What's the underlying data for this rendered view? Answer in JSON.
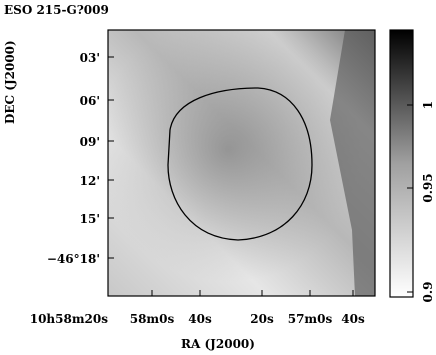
{
  "title": "ESO 215-G?009",
  "x_axis": {
    "label": "RA (J2000)",
    "ticks": [
      "10h58m20s",
      "58m0s",
      "40s",
      "20s",
      "57m0s",
      "40s"
    ]
  },
  "y_axis": {
    "label": "DEC (J2000)",
    "ticks": [
      "03'",
      "06'",
      "09'",
      "12'",
      "15'",
      "−46°18'"
    ]
  },
  "colorbar": {
    "ticks": [
      "1",
      "0.95",
      "0.9"
    ]
  }
}
